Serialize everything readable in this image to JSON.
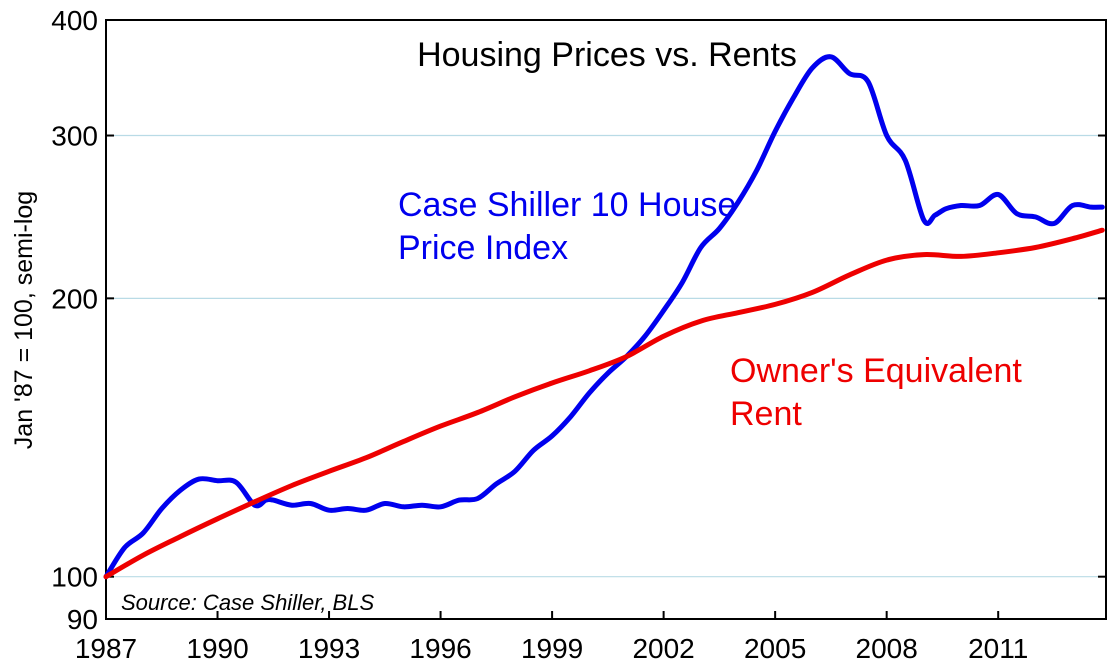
{
  "chart_data": {
    "type": "line",
    "title": "Housing Prices vs. Rents",
    "ylabel": "Jan '87 = 100, semi-log",
    "xlabel": "",
    "yscale": "log",
    "ylim": [
      90,
      400
    ],
    "xlim": [
      1987,
      2013.9
    ],
    "yticks": [
      90,
      100,
      200,
      300,
      400
    ],
    "xticks": [
      1987,
      1990,
      1993,
      1996,
      1999,
      2002,
      2005,
      2008,
      2011
    ],
    "grid": "horizontal",
    "source": "Source: Case Shiller, BLS",
    "colors": {
      "case_shiller": "#0000ee",
      "oer": "#ee0000",
      "grid": "#b9dbe6",
      "frame": "#000000"
    },
    "series": [
      {
        "name": "Case Shiller 10 House Price Index",
        "label_lines": [
          "Case Shiller 10 House",
          "Price Index"
        ],
        "color": "#0000ee",
        "x": [
          1987.0,
          1987.5,
          1988.0,
          1988.5,
          1989.0,
          1989.5,
          1990.0,
          1990.5,
          1991.0,
          1991.3,
          1991.5,
          1992.0,
          1992.5,
          1993.0,
          1993.5,
          1994.0,
          1994.5,
          1995.0,
          1995.5,
          1996.0,
          1996.5,
          1997.0,
          1997.5,
          1998.0,
          1998.5,
          1999.0,
          1999.5,
          2000.0,
          2000.5,
          2001.0,
          2001.5,
          2002.0,
          2002.5,
          2003.0,
          2003.5,
          2004.0,
          2004.5,
          2005.0,
          2005.5,
          2006.0,
          2006.5,
          2007.0,
          2007.5,
          2008.0,
          2008.5,
          2009.0,
          2009.3,
          2009.6,
          2010.0,
          2010.5,
          2011.0,
          2011.5,
          2012.0,
          2012.5,
          2013.0,
          2013.5,
          2013.8
        ],
        "y": [
          100,
          107.5,
          111.5,
          118.5,
          124,
          127.5,
          127,
          126.5,
          119.5,
          121,
          121,
          119.5,
          120,
          118,
          118.5,
          118,
          120,
          119,
          119.5,
          119,
          121,
          121.5,
          126,
          130,
          137,
          142,
          149,
          158,
          166,
          173,
          182,
          194,
          208,
          227,
          238,
          254,
          275,
          303,
          330,
          355,
          365,
          350,
          343,
          300,
          282,
          243,
          246,
          250,
          252,
          252,
          259,
          247,
          245,
          241,
          252,
          251,
          251
        ]
      },
      {
        "name": "Owner's Equivalent Rent",
        "label_lines": [
          "Owner's Equivalent",
          "Rent"
        ],
        "color": "#ee0000",
        "x": [
          1987.0,
          1988.0,
          1989.0,
          1990.0,
          1991.0,
          1992.0,
          1993.0,
          1994.0,
          1995.0,
          1996.0,
          1997.0,
          1998.0,
          1999.0,
          2000.0,
          2001.0,
          2002.0,
          2003.0,
          2004.0,
          2005.0,
          2006.0,
          2007.0,
          2008.0,
          2009.0,
          2010.0,
          2011.0,
          2012.0,
          2013.0,
          2013.8
        ],
        "y": [
          100,
          105.5,
          110.5,
          115.5,
          120.5,
          125.5,
          130,
          134.5,
          140,
          145.5,
          150.5,
          156.5,
          162,
          167,
          173,
          182,
          189,
          193,
          197,
          203,
          212,
          220,
          223,
          222,
          224,
          227,
          232,
          237
        ]
      }
    ]
  }
}
